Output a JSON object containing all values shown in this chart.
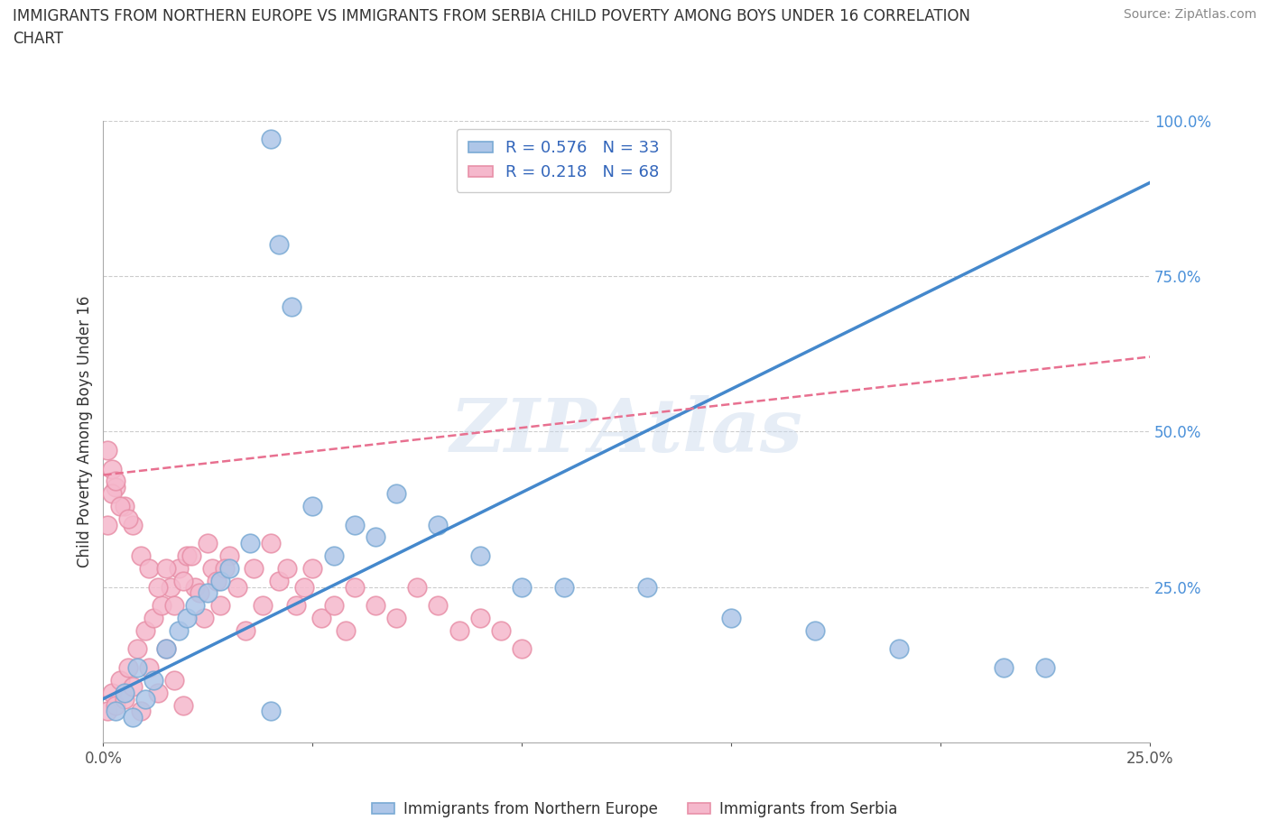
{
  "title_line1": "IMMIGRANTS FROM NORTHERN EUROPE VS IMMIGRANTS FROM SERBIA CHILD POVERTY AMONG BOYS UNDER 16 CORRELATION",
  "title_line2": "CHART",
  "source": "Source: ZipAtlas.com",
  "ylabel": "Child Poverty Among Boys Under 16",
  "watermark": "ZIPAtlas",
  "xlim": [
    0.0,
    0.25
  ],
  "ylim": [
    0.0,
    1.0
  ],
  "series1_name": "Immigrants from Northern Europe",
  "series1_R": 0.576,
  "series1_N": 33,
  "series1_color": "#aec6e8",
  "series1_edge": "#7aaad4",
  "series2_name": "Immigrants from Serbia",
  "series2_R": 0.218,
  "series2_N": 68,
  "series2_color": "#f5b8cc",
  "series2_edge": "#e890a8",
  "trendline1_color": "#4488cc",
  "trendline2_color": "#e87090",
  "grid_color": "#cccccc",
  "background_color": "#ffffff",
  "series1_x": [
    0.003,
    0.005,
    0.007,
    0.008,
    0.01,
    0.012,
    0.015,
    0.018,
    0.02,
    0.022,
    0.025,
    0.028,
    0.03,
    0.035,
    0.04,
    0.042,
    0.045,
    0.05,
    0.055,
    0.06,
    0.065,
    0.07,
    0.08,
    0.09,
    0.1,
    0.11,
    0.13,
    0.15,
    0.17,
    0.19,
    0.215,
    0.225,
    0.04
  ],
  "series1_y": [
    0.05,
    0.08,
    0.04,
    0.12,
    0.07,
    0.1,
    0.15,
    0.18,
    0.2,
    0.22,
    0.24,
    0.26,
    0.28,
    0.32,
    0.97,
    0.8,
    0.7,
    0.38,
    0.3,
    0.35,
    0.33,
    0.4,
    0.35,
    0.3,
    0.25,
    0.25,
    0.25,
    0.2,
    0.18,
    0.15,
    0.12,
    0.12,
    0.05
  ],
  "series2_x": [
    0.001,
    0.002,
    0.003,
    0.004,
    0.005,
    0.006,
    0.007,
    0.008,
    0.009,
    0.01,
    0.011,
    0.012,
    0.013,
    0.014,
    0.015,
    0.016,
    0.017,
    0.018,
    0.019,
    0.02,
    0.022,
    0.024,
    0.026,
    0.028,
    0.03,
    0.032,
    0.034,
    0.036,
    0.038,
    0.04,
    0.042,
    0.044,
    0.046,
    0.048,
    0.05,
    0.052,
    0.055,
    0.058,
    0.06,
    0.065,
    0.07,
    0.075,
    0.08,
    0.085,
    0.09,
    0.095,
    0.1,
    0.001,
    0.002,
    0.003,
    0.005,
    0.007,
    0.009,
    0.011,
    0.013,
    0.015,
    0.017,
    0.019,
    0.021,
    0.023,
    0.025,
    0.027,
    0.029,
    0.001,
    0.002,
    0.003,
    0.004,
    0.006
  ],
  "series2_y": [
    0.05,
    0.08,
    0.06,
    0.1,
    0.07,
    0.12,
    0.09,
    0.15,
    0.05,
    0.18,
    0.12,
    0.2,
    0.08,
    0.22,
    0.15,
    0.25,
    0.1,
    0.28,
    0.06,
    0.3,
    0.25,
    0.2,
    0.28,
    0.22,
    0.3,
    0.25,
    0.18,
    0.28,
    0.22,
    0.32,
    0.26,
    0.28,
    0.22,
    0.25,
    0.28,
    0.2,
    0.22,
    0.18,
    0.25,
    0.22,
    0.2,
    0.25,
    0.22,
    0.18,
    0.2,
    0.18,
    0.15,
    0.47,
    0.44,
    0.41,
    0.38,
    0.35,
    0.3,
    0.28,
    0.25,
    0.28,
    0.22,
    0.26,
    0.3,
    0.24,
    0.32,
    0.26,
    0.28,
    0.35,
    0.4,
    0.42,
    0.38,
    0.36
  ],
  "trendline1_x0": 0.0,
  "trendline1_y0": 0.07,
  "trendline1_x1": 0.25,
  "trendline1_y1": 0.9,
  "trendline2_x0": 0.0,
  "trendline2_y0": 0.43,
  "trendline2_x1": 0.25,
  "trendline2_y1": 0.62
}
